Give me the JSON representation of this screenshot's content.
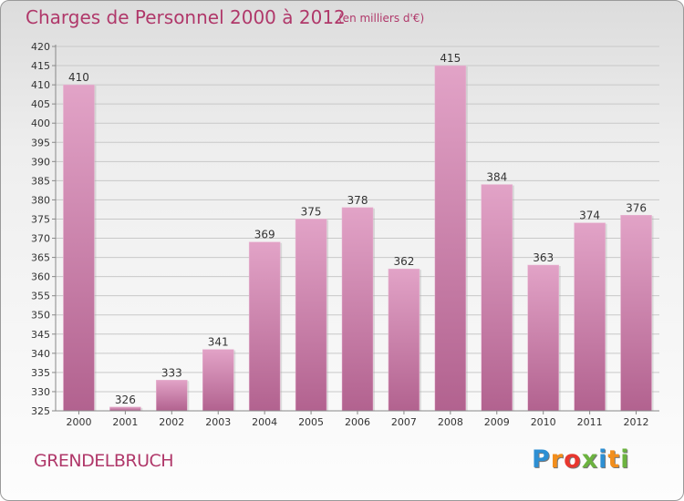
{
  "header": {
    "title": "Charges de Personnel 2000 à 2012",
    "unit_note": "(en milliers d'€)"
  },
  "footer": {
    "commune": "GRENDELBRUCH",
    "brand": "Proxiti",
    "brand_letters": [
      "P",
      "r",
      "o",
      "x",
      "i",
      "t",
      "i"
    ]
  },
  "colors": {
    "title": "#b0386a",
    "bar_top": "#e2a3c7",
    "bar_bottom": "#b2628f",
    "axis_text": "#333333",
    "grid": "#c8c8c8",
    "brand_letters": [
      "#2d8fd3",
      "#f28e1c",
      "#e8372f",
      "#6cb33f",
      "#2d8fd3",
      "#f28e1c",
      "#6cb33f"
    ]
  },
  "chart_data": {
    "type": "bar",
    "title": "Charges de Personnel 2000 à 2012",
    "subtitle": "(en milliers d'€)",
    "categories": [
      "2000",
      "2001",
      "2002",
      "2003",
      "2004",
      "2005",
      "2006",
      "2007",
      "2008",
      "2009",
      "2010",
      "2011",
      "2012"
    ],
    "values": [
      410,
      326,
      333,
      341,
      369,
      375,
      378,
      362,
      415,
      384,
      363,
      374,
      376
    ],
    "ylim": [
      325,
      420
    ],
    "ytick_step": 5,
    "grid": true,
    "legend": "none"
  }
}
